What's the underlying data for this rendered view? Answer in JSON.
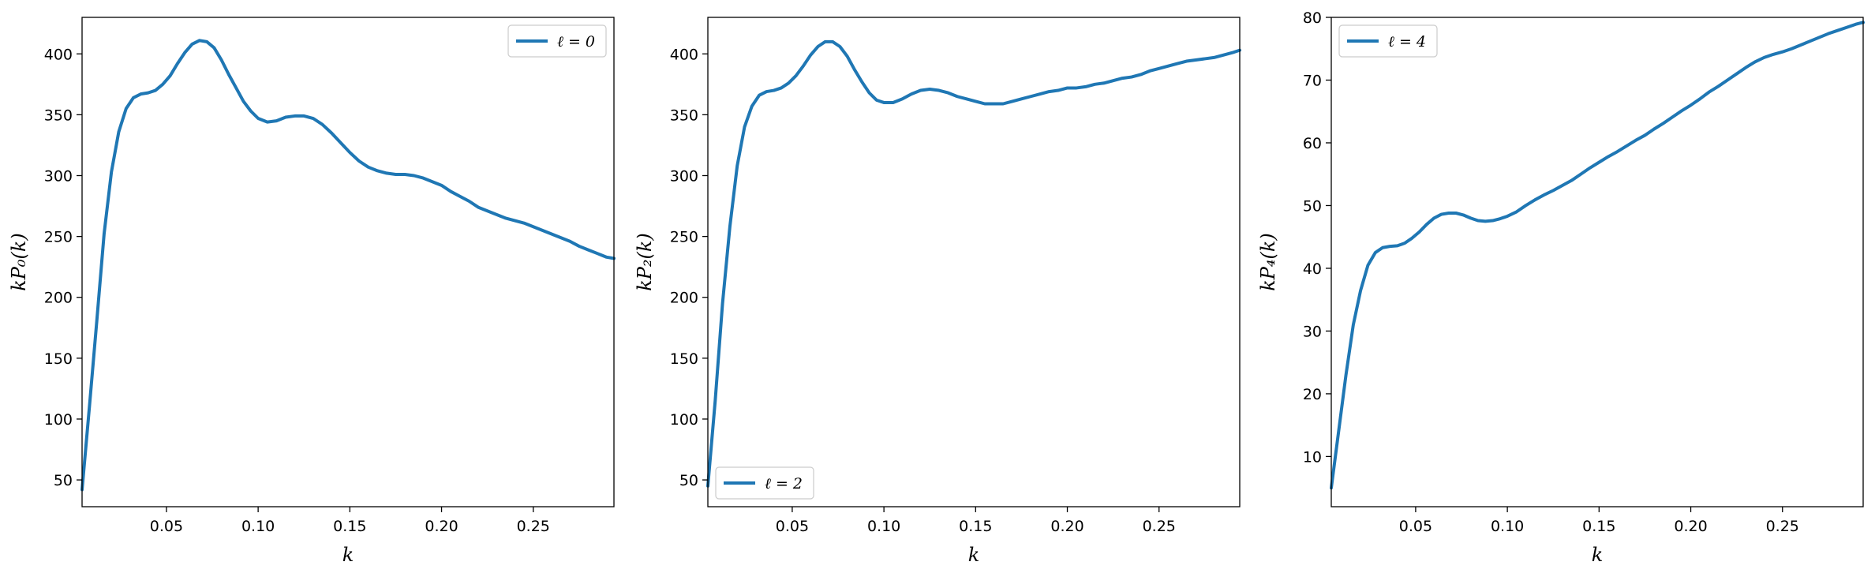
{
  "colors": {
    "series": "#1f77b4"
  },
  "chart_data": [
    {
      "type": "line",
      "xlabel": "k",
      "ylabel": "kP₀(k)",
      "xlim": [
        0.004,
        0.294
      ],
      "ylim": [
        28,
        430
      ],
      "xticks": [
        0.05,
        0.1,
        0.15,
        0.2,
        0.25
      ],
      "xtick_labels": [
        "0.05",
        "0.10",
        "0.15",
        "0.20",
        "0.25"
      ],
      "yticks": [
        50,
        100,
        150,
        200,
        250,
        300,
        350,
        400
      ],
      "ytick_labels": [
        "50",
        "100",
        "150",
        "200",
        "250",
        "300",
        "350",
        "400"
      ],
      "legend": {
        "position": "top-right",
        "entries": [
          "ℓ = 0"
        ]
      },
      "series": [
        {
          "name": "ℓ = 0",
          "x": [
            0.004,
            0.008,
            0.012,
            0.016,
            0.02,
            0.024,
            0.028,
            0.032,
            0.036,
            0.04,
            0.044,
            0.048,
            0.052,
            0.056,
            0.06,
            0.064,
            0.068,
            0.072,
            0.076,
            0.08,
            0.084,
            0.088,
            0.092,
            0.096,
            0.1,
            0.105,
            0.11,
            0.115,
            0.12,
            0.125,
            0.13,
            0.135,
            0.14,
            0.145,
            0.15,
            0.155,
            0.16,
            0.165,
            0.17,
            0.175,
            0.18,
            0.185,
            0.19,
            0.195,
            0.2,
            0.205,
            0.21,
            0.215,
            0.22,
            0.225,
            0.23,
            0.235,
            0.24,
            0.245,
            0.25,
            0.255,
            0.26,
            0.265,
            0.27,
            0.275,
            0.28,
            0.285,
            0.29,
            0.294
          ],
          "y": [
            42,
            110,
            180,
            252,
            303,
            336,
            355,
            364,
            367,
            368,
            370,
            375,
            382,
            392,
            401,
            408,
            411,
            410,
            405,
            395,
            383,
            372,
            361,
            353,
            347,
            344,
            345,
            348,
            349,
            349,
            347,
            342,
            335,
            327,
            319,
            312,
            307,
            304,
            302,
            301,
            301,
            300,
            298,
            295,
            292,
            287,
            283,
            279,
            274,
            271,
            268,
            265,
            263,
            261,
            258,
            255,
            252,
            249,
            246,
            242,
            239,
            236,
            233,
            232
          ]
        }
      ]
    },
    {
      "type": "line",
      "xlabel": "k",
      "ylabel": "kP₂(k)",
      "xlim": [
        0.004,
        0.294
      ],
      "ylim": [
        28,
        430
      ],
      "xticks": [
        0.05,
        0.1,
        0.15,
        0.2,
        0.25
      ],
      "xtick_labels": [
        "0.05",
        "0.10",
        "0.15",
        "0.20",
        "0.25"
      ],
      "yticks": [
        50,
        100,
        150,
        200,
        250,
        300,
        350,
        400
      ],
      "ytick_labels": [
        "50",
        "100",
        "150",
        "200",
        "250",
        "300",
        "350",
        "400"
      ],
      "legend": {
        "position": "bottom-left",
        "entries": [
          "ℓ = 2"
        ]
      },
      "series": [
        {
          "name": "ℓ = 2",
          "x": [
            0.004,
            0.008,
            0.012,
            0.016,
            0.02,
            0.024,
            0.028,
            0.032,
            0.036,
            0.04,
            0.044,
            0.048,
            0.052,
            0.056,
            0.06,
            0.064,
            0.068,
            0.072,
            0.076,
            0.08,
            0.084,
            0.088,
            0.092,
            0.096,
            0.1,
            0.105,
            0.11,
            0.115,
            0.12,
            0.125,
            0.13,
            0.135,
            0.14,
            0.145,
            0.15,
            0.155,
            0.16,
            0.165,
            0.17,
            0.175,
            0.18,
            0.185,
            0.19,
            0.195,
            0.2,
            0.205,
            0.21,
            0.215,
            0.22,
            0.225,
            0.23,
            0.235,
            0.24,
            0.245,
            0.25,
            0.255,
            0.26,
            0.265,
            0.27,
            0.275,
            0.28,
            0.285,
            0.29,
            0.294
          ],
          "y": [
            45,
            115,
            195,
            258,
            308,
            340,
            357,
            366,
            369,
            370,
            372,
            376,
            382,
            390,
            399,
            406,
            410,
            410,
            406,
            398,
            387,
            377,
            368,
            362,
            360,
            360,
            363,
            367,
            370,
            371,
            370,
            368,
            365,
            363,
            361,
            359,
            359,
            359,
            361,
            363,
            365,
            367,
            369,
            370,
            372,
            372,
            373,
            375,
            376,
            378,
            380,
            381,
            383,
            386,
            388,
            390,
            392,
            394,
            395,
            396,
            397,
            399,
            401,
            403
          ]
        }
      ]
    },
    {
      "type": "line",
      "xlabel": "k",
      "ylabel": "kP₄(k)",
      "xlim": [
        0.004,
        0.294
      ],
      "ylim": [
        2,
        80
      ],
      "xticks": [
        0.05,
        0.1,
        0.15,
        0.2,
        0.25
      ],
      "xtick_labels": [
        "0.05",
        "0.10",
        "0.15",
        "0.20",
        "0.25"
      ],
      "yticks": [
        10,
        20,
        30,
        40,
        50,
        60,
        70,
        80
      ],
      "ytick_labels": [
        "10",
        "20",
        "30",
        "40",
        "50",
        "60",
        "70",
        "80"
      ],
      "legend": {
        "position": "top-left",
        "entries": [
          "ℓ = 4"
        ]
      },
      "series": [
        {
          "name": "ℓ = 4",
          "x": [
            0.004,
            0.008,
            0.012,
            0.016,
            0.02,
            0.024,
            0.028,
            0.032,
            0.036,
            0.04,
            0.044,
            0.048,
            0.052,
            0.056,
            0.06,
            0.064,
            0.068,
            0.072,
            0.076,
            0.08,
            0.084,
            0.088,
            0.092,
            0.096,
            0.1,
            0.105,
            0.11,
            0.115,
            0.12,
            0.125,
            0.13,
            0.135,
            0.14,
            0.145,
            0.15,
            0.155,
            0.16,
            0.165,
            0.17,
            0.175,
            0.18,
            0.185,
            0.19,
            0.195,
            0.2,
            0.205,
            0.21,
            0.215,
            0.22,
            0.225,
            0.23,
            0.235,
            0.24,
            0.245,
            0.25,
            0.255,
            0.26,
            0.265,
            0.27,
            0.275,
            0.28,
            0.285,
            0.29,
            0.294
          ],
          "y": [
            5,
            14,
            23,
            31,
            36.5,
            40.5,
            42.5,
            43.3,
            43.5,
            43.6,
            44,
            44.8,
            45.8,
            47,
            48,
            48.6,
            48.8,
            48.8,
            48.5,
            48,
            47.6,
            47.5,
            47.6,
            47.9,
            48.3,
            49,
            50,
            50.9,
            51.7,
            52.4,
            53.2,
            54,
            55,
            56,
            56.9,
            57.8,
            58.6,
            59.5,
            60.4,
            61.2,
            62.2,
            63.1,
            64.1,
            65.1,
            66,
            67,
            68.1,
            69,
            70,
            71,
            72,
            72.9,
            73.6,
            74.1,
            74.5,
            75,
            75.6,
            76.2,
            76.8,
            77.4,
            77.9,
            78.4,
            78.9,
            79.2
          ]
        }
      ]
    }
  ]
}
